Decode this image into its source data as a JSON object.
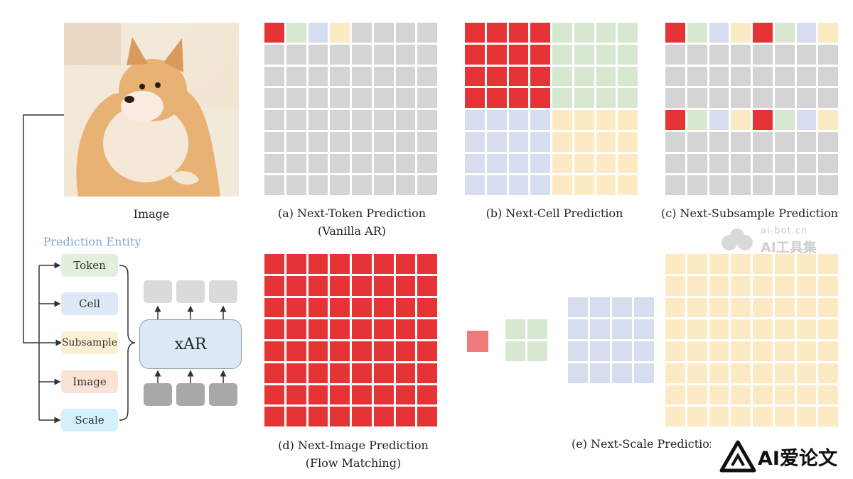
{
  "image_panel": {
    "caption": "Image"
  },
  "captions": {
    "a": [
      "(a) Next-Token Prediction",
      "(Vanilla AR)"
    ],
    "b": [
      "(b) Next-Cell Prediction"
    ],
    "c": [
      "(c) Next-Subsample Prediction"
    ],
    "d": [
      "(d) Next-Image Prediction",
      "(Flow Matching)"
    ],
    "e": [
      "(e) Next-Scale Prediction"
    ]
  },
  "prediction_entity": {
    "title": "Prediction Entity",
    "items": [
      {
        "label": "Token",
        "color": "#e2efdb"
      },
      {
        "label": "Cell",
        "color": "#dde9f6"
      },
      {
        "label": "Subsample",
        "color": "#fbf0d4"
      },
      {
        "label": "Image",
        "color": "#fbe2d6"
      },
      {
        "label": "Scale",
        "color": "#d5f2fa"
      }
    ]
  },
  "model": {
    "label": "xAR"
  },
  "watermarks": {
    "site": "ai-bot.cn",
    "site_name": "AI工具集",
    "brand": "AI爱论文"
  },
  "colors": {
    "red": "#e53336",
    "green": "#d7e7d0",
    "blue": "#d5ddef",
    "yellow": "#fbeac3",
    "gray": "#d4d4d4",
    "token_gray": "#a8a8a8",
    "output_gray": "#dadada"
  }
}
